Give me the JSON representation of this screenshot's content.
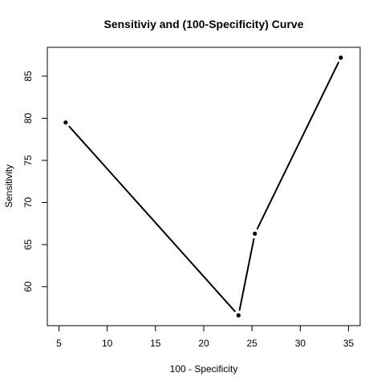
{
  "chart_data": {
    "type": "line",
    "title": "Sensitiviy and (100-Specificity) Curve",
    "xlabel": "100 - Specificity",
    "ylabel": "Sensitivity",
    "x": [
      5.7,
      23.6,
      25.3,
      34.2
    ],
    "y": [
      79.5,
      56.6,
      66.3,
      87.2
    ],
    "xlim": [
      5,
      35
    ],
    "ylim": [
      56.6,
      87.2
    ],
    "xticks": [
      5,
      10,
      15,
      20,
      25,
      30,
      35
    ],
    "yticks": [
      60,
      65,
      70,
      75,
      80,
      85
    ],
    "grid": false,
    "legend": false,
    "point_color": "#000000",
    "line_color": "#000000"
  }
}
